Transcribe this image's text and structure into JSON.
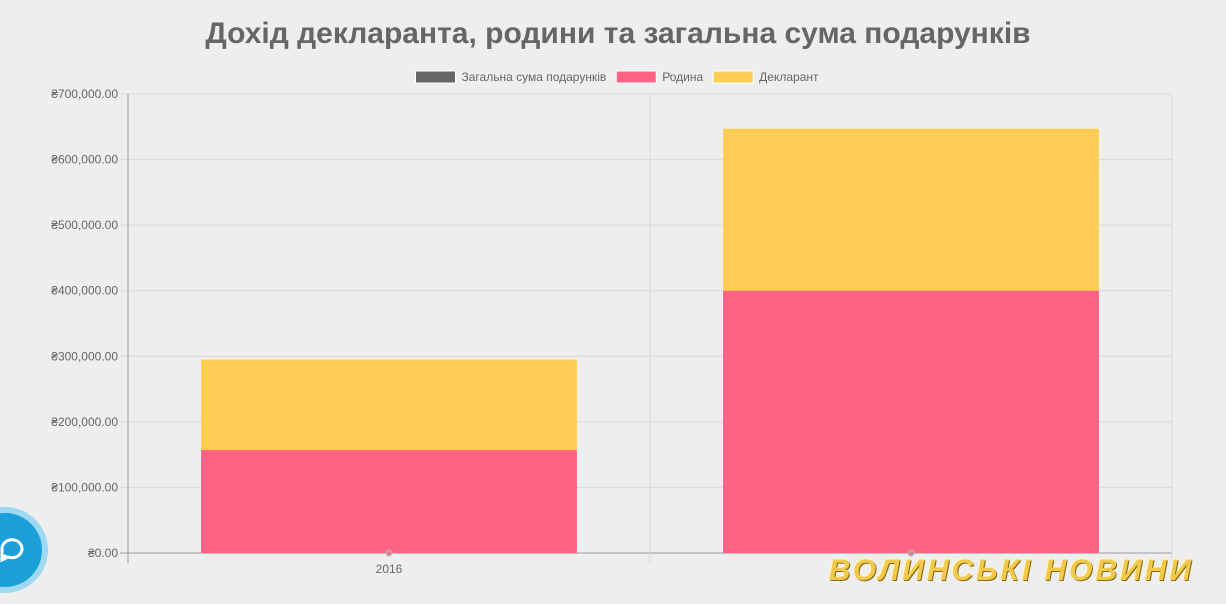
{
  "chart_data": {
    "type": "bar",
    "stacked": true,
    "title": "Дохід декларанта, родини та загальна сума подарунків",
    "categories": [
      "2016",
      ""
    ],
    "series": [
      {
        "name": "Загальна сума подарунків",
        "color": "#666666",
        "values": [
          0,
          0
        ]
      },
      {
        "name": "Родина",
        "color": "#ff6384",
        "values": [
          157000,
          400000
        ]
      },
      {
        "name": "Декларант",
        "color": "#ffcd56",
        "values": [
          138000,
          247000
        ]
      }
    ],
    "ylim": [
      0,
      700000
    ],
    "yticks": [
      "₴700,000.00",
      "₴600,000.00",
      "₴500,000.00",
      "₴400,000.00",
      "₴300,000.00",
      "₴200,000.00",
      "₴100,000.00",
      "₴0.00"
    ],
    "ytick_values": [
      700000,
      600000,
      500000,
      400000,
      300000,
      200000,
      100000,
      0
    ],
    "xlabel": "",
    "ylabel": "",
    "grid": true,
    "legend_position": "top"
  },
  "watermark": "ВОЛИНСЬКІ НОВИНИ",
  "icons": {
    "chat": "chat-bubble-icon"
  }
}
